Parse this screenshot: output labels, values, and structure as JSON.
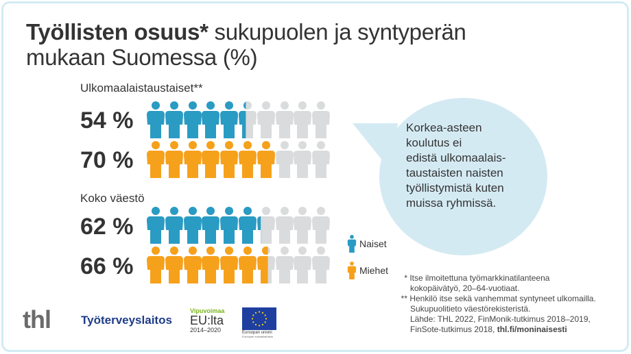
{
  "title": {
    "bold": "Työllisten osuus*",
    "rest_line1": " sukupuolen ja syntyperän",
    "line2": "mukaan Suomessa (%)"
  },
  "sections": [
    {
      "label": "Ulkomaalaistaustaiset**",
      "rows": [
        {
          "gender": "Naiset",
          "value_label": "54 %",
          "value": 54,
          "color": "#2a9bc3"
        },
        {
          "gender": "Miehet",
          "value_label": "70 %",
          "value": 70,
          "color": "#f6a11b"
        }
      ]
    },
    {
      "label": "Koko väestö",
      "rows": [
        {
          "gender": "Naiset",
          "value_label": "62 %",
          "value": 62,
          "color": "#2a9bc3"
        },
        {
          "gender": "Miehet",
          "value_label": "66 %",
          "value": 66,
          "color": "#f6a11b"
        }
      ]
    }
  ],
  "bubble": {
    "lines": [
      "Korkea-asteen",
      "koulutus ei",
      "edistä ulkomaalais-",
      "taustaisten naisten",
      "työllistymistä kuten",
      "muissa ryhmissä."
    ]
  },
  "legend": [
    {
      "label": "Naiset",
      "color": "#2a9bc3"
    },
    {
      "label": "Miehet",
      "color": "#f6a11b"
    }
  ],
  "notes": {
    "n1_marker": "*",
    "n1_line1": "Itse ilmoitettuna työmarkkinatilanteena",
    "n1_line2": "kokopäivätyö, 20–64-vuotiaat.",
    "n2_marker": "**",
    "n2_line1": "Henkilö itse sekä vanhemmat  syntyneet ulkomailla.",
    "n2_line2": "Sukupuolitieto väestörekisteristä.",
    "source_line1": "Lähde: THL 2022, FinMonik-tutkimus 2018–2019,",
    "source_line2_plain": "FinSote-tutkimus 2018, ",
    "source_link": "thl.fi/moninaisesti"
  },
  "logos": {
    "thl": "thl",
    "tyoterveyslaitos": "Työterveyslaitos",
    "vipuvoimaa": "Vipuvoimaa",
    "eulta": "EU:lta",
    "years": "2014–2020",
    "eu_name": "Euroopan unioni",
    "eu_fund": "Euroopan sosiaalirahasto"
  },
  "colors": {
    "women": "#2a9bc3",
    "men": "#f6a11b",
    "empty": "#d9dbdd",
    "bubble": "#d4eaf3",
    "border": "#d3ebf3"
  },
  "chart_data": {
    "type": "bar",
    "title": "Työllisten osuus* sukupuolen ja syntyperän mukaan Suomessa (%)",
    "categories": [
      "Ulkomaalaistaustaiset**",
      "Koko väestö"
    ],
    "series": [
      {
        "name": "Naiset",
        "values": [
          54,
          62
        ]
      },
      {
        "name": "Miehet",
        "values": [
          70,
          66
        ]
      }
    ],
    "xlabel": "",
    "ylabel": "%",
    "ylim": [
      0,
      100
    ],
    "representation": "pictogram, 10 figures = 100%",
    "legend_position": "right"
  }
}
